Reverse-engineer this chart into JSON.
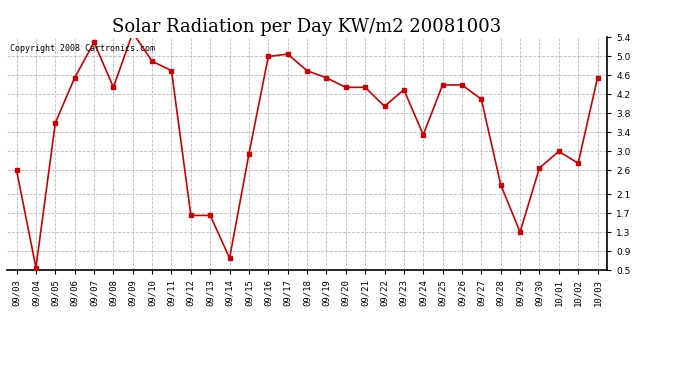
{
  "title": "Solar Radiation per Day KW/m2 20081003",
  "copyright_text": "Copyright 2008 Cartronics.com",
  "dates": [
    "09/03",
    "09/04",
    "09/05",
    "09/06",
    "09/07",
    "09/08",
    "09/09",
    "09/10",
    "09/11",
    "09/12",
    "09/13",
    "09/14",
    "09/15",
    "09/16",
    "09/17",
    "09/18",
    "09/19",
    "09/20",
    "09/21",
    "09/22",
    "09/23",
    "09/24",
    "09/25",
    "09/26",
    "09/27",
    "09/28",
    "09/29",
    "09/30",
    "10/01",
    "10/02",
    "10/03"
  ],
  "values": [
    2.6,
    0.55,
    3.6,
    4.55,
    5.3,
    4.35,
    5.5,
    4.9,
    4.7,
    1.65,
    1.65,
    0.75,
    2.95,
    5.0,
    5.05,
    4.7,
    4.55,
    4.35,
    4.35,
    3.95,
    4.3,
    3.35,
    4.4,
    4.4,
    4.1,
    2.3,
    1.3,
    2.65,
    3.0,
    2.75,
    4.55
  ],
  "line_color": "#cc0000",
  "marker": "s",
  "marker_size": 2.5,
  "background_color": "#ffffff",
  "plot_bg_color": "#ffffff",
  "grid_color": "#bbbbbb",
  "ylim": [
    0.5,
    5.4
  ],
  "yticks": [
    0.5,
    0.9,
    1.3,
    1.7,
    2.1,
    2.6,
    3.0,
    3.4,
    3.8,
    4.2,
    4.6,
    5.0,
    5.4
  ],
  "title_fontsize": 13,
  "tick_fontsize": 6.5,
  "copyright_fontsize": 6
}
